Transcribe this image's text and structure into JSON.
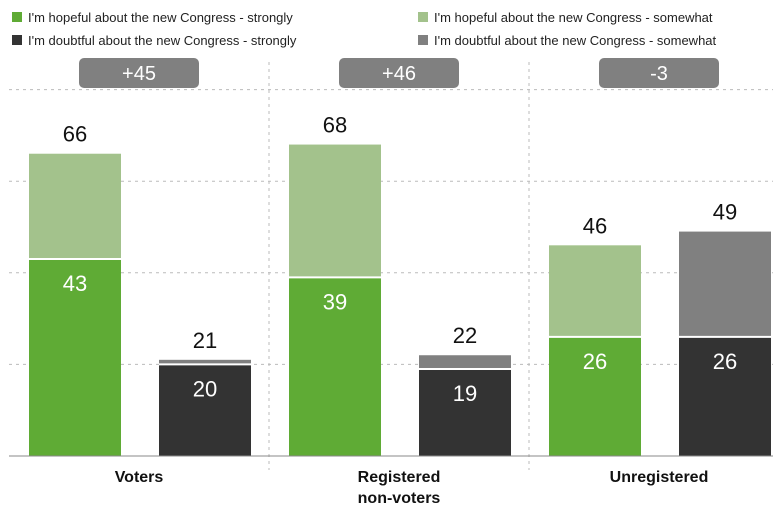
{
  "chart_data": {
    "type": "bar",
    "stacked": true,
    "legend": {
      "placement": "top",
      "entries": [
        {
          "label": "I'm hopeful about the new Congress - strongly",
          "color": "#5fab35"
        },
        {
          "label": "I'm hopeful about the new Congress - somewhat",
          "color": "#a3c28c"
        },
        {
          "label": "I'm doubtful about the new Congress - strongly",
          "color": "#333333"
        },
        {
          "label": "I'm doubtful about the new Congress - somewhat",
          "color": "#808080"
        }
      ]
    },
    "categories": [
      "Voters",
      "Registered non-voters",
      "Unregistered"
    ],
    "category_lines": [
      [
        "Voters"
      ],
      [
        "Registered",
        "non-voters"
      ],
      [
        "Unregistered"
      ]
    ],
    "margins": [
      "+45",
      "+46",
      "-3"
    ],
    "margin_badge_color": "#808080",
    "series": [
      {
        "name": "I'm hopeful about the new Congress - strongly",
        "stack": "hopeful",
        "values": [
          43,
          39,
          26
        ]
      },
      {
        "name": "I'm hopeful about the new Congress - somewhat",
        "stack": "hopeful",
        "values": [
          23,
          29,
          20
        ]
      },
      {
        "name": "I'm doubtful about the new Congress - strongly",
        "stack": "doubtful",
        "values": [
          20,
          19,
          26
        ]
      },
      {
        "name": "I'm doubtful about the new Congress - somewhat",
        "stack": "doubtful",
        "values": [
          1,
          3,
          23
        ]
      }
    ],
    "hopeful_totals": [
      66,
      68,
      46
    ],
    "doubtful_totals": [
      21,
      22,
      49
    ],
    "ylim": [
      0,
      100
    ],
    "grid": true,
    "title": "",
    "xlabel": "",
    "ylabel": ""
  }
}
